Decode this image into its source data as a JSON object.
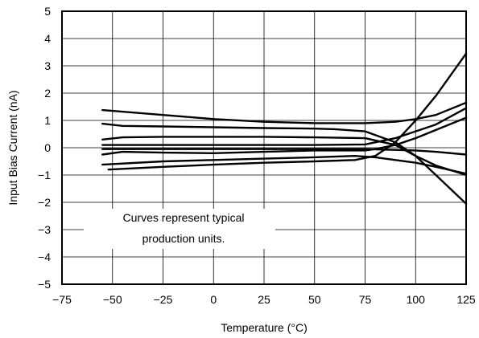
{
  "chart_data": {
    "type": "line",
    "title": "",
    "xlabel": "Temperature (°C)",
    "ylabel": "Input Bias Current (nA)",
    "xlim": [
      -75,
      125
    ],
    "ylim": [
      -5,
      5
    ],
    "x_ticks": [
      -75,
      -50,
      -25,
      0,
      25,
      50,
      75,
      100,
      125
    ],
    "x_tick_labels": [
      "−75",
      "−50",
      "−25",
      "0",
      "25",
      "50",
      "75",
      "100",
      "125"
    ],
    "y_ticks": [
      5,
      4,
      3,
      2,
      1,
      0,
      -1,
      -2,
      -3,
      -4,
      -5
    ],
    "y_tick_labels": [
      "5",
      "4",
      "3",
      "2",
      "1",
      "0",
      "−1",
      "−2",
      "−3",
      "−4",
      "−5"
    ],
    "grid": true,
    "annotation": [
      "Curves represent typical",
      "production units."
    ],
    "series": [
      {
        "points": [
          [
            -55,
            1.38
          ],
          [
            -25,
            1.2
          ],
          [
            0,
            1.05
          ],
          [
            25,
            0.95
          ],
          [
            50,
            0.9
          ],
          [
            75,
            0.9
          ],
          [
            90,
            0.95
          ],
          [
            100,
            1.05
          ],
          [
            110,
            1.2
          ],
          [
            125,
            1.65
          ]
        ]
      },
      {
        "points": [
          [
            -55,
            0.88
          ],
          [
            -45,
            0.8
          ],
          [
            -25,
            0.78
          ],
          [
            0,
            0.75
          ],
          [
            25,
            0.72
          ],
          [
            50,
            0.7
          ],
          [
            60,
            0.68
          ],
          [
            75,
            0.6
          ],
          [
            90,
            0.2
          ],
          [
            100,
            -0.3
          ],
          [
            110,
            -1.0
          ],
          [
            125,
            -2.05
          ]
        ]
      },
      {
        "points": [
          [
            -55,
            0.3
          ],
          [
            -45,
            0.38
          ],
          [
            -25,
            0.4
          ],
          [
            0,
            0.4
          ],
          [
            25,
            0.4
          ],
          [
            50,
            0.38
          ],
          [
            75,
            0.35
          ],
          [
            90,
            0.1
          ],
          [
            100,
            -0.3
          ],
          [
            110,
            -0.65
          ],
          [
            125,
            -1.0
          ]
        ]
      },
      {
        "points": [
          [
            -55,
            0.1
          ],
          [
            -25,
            0.1
          ],
          [
            0,
            0.1
          ],
          [
            25,
            0.1
          ],
          [
            50,
            0.1
          ],
          [
            75,
            0.12
          ],
          [
            90,
            0.35
          ],
          [
            100,
            0.6
          ],
          [
            110,
            0.85
          ],
          [
            125,
            1.45
          ]
        ]
      },
      {
        "points": [
          [
            -55,
            -0.05
          ],
          [
            -25,
            -0.05
          ],
          [
            0,
            -0.05
          ],
          [
            25,
            -0.05
          ],
          [
            50,
            -0.05
          ],
          [
            75,
            -0.05
          ],
          [
            100,
            -0.1
          ],
          [
            110,
            -0.15
          ],
          [
            125,
            -0.25
          ]
        ]
      },
      {
        "points": [
          [
            -55,
            -0.25
          ],
          [
            -45,
            -0.15
          ],
          [
            -25,
            -0.18
          ],
          [
            0,
            -0.2
          ],
          [
            25,
            -0.15
          ],
          [
            50,
            -0.1
          ],
          [
            75,
            -0.1
          ],
          [
            80,
            -0.05
          ],
          [
            90,
            0.1
          ],
          [
            100,
            0.35
          ],
          [
            110,
            0.65
          ],
          [
            125,
            1.1
          ]
        ]
      },
      {
        "points": [
          [
            -55,
            -0.62
          ],
          [
            -25,
            -0.5
          ],
          [
            0,
            -0.45
          ],
          [
            25,
            -0.4
          ],
          [
            50,
            -0.35
          ],
          [
            70,
            -0.3
          ],
          [
            80,
            -0.35
          ],
          [
            90,
            -0.45
          ],
          [
            100,
            -0.55
          ],
          [
            110,
            -0.7
          ],
          [
            125,
            -0.95
          ]
        ]
      },
      {
        "points": [
          [
            -52,
            -0.8
          ],
          [
            -25,
            -0.7
          ],
          [
            0,
            -0.62
          ],
          [
            25,
            -0.55
          ],
          [
            50,
            -0.5
          ],
          [
            70,
            -0.45
          ],
          [
            80,
            -0.3
          ],
          [
            90,
            0.2
          ],
          [
            100,
            1.0
          ],
          [
            110,
            1.9
          ],
          [
            125,
            3.45
          ]
        ]
      }
    ]
  }
}
